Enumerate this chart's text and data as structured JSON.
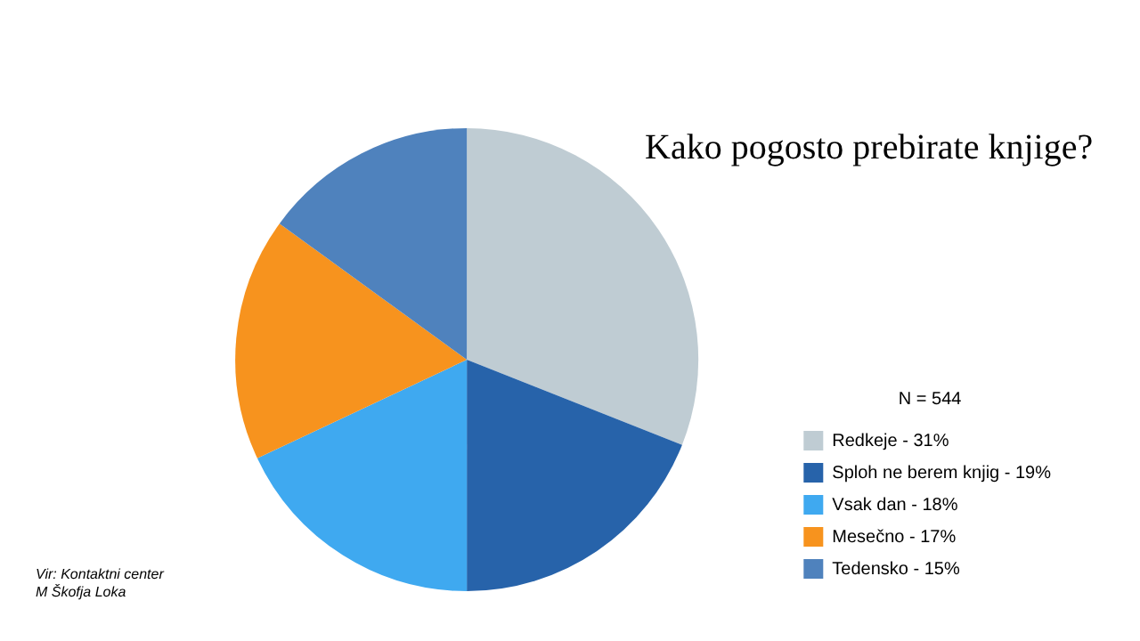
{
  "chart_data": {
    "type": "pie",
    "title": "Kako pogosto prebirate knjige?",
    "legend_title": "N = 544",
    "legend": "right",
    "categories": [
      "Redkeje - 31%",
      "Sploh ne berem knjig - 19%",
      "Vsak dan - 18%",
      "Mesečno - 17%",
      "Tedensko - 15%"
    ],
    "values": [
      31,
      19,
      18,
      17,
      15
    ],
    "colors": [
      "#bfccd3",
      "#2763aa",
      "#3fa9f0",
      "#f7931e",
      "#4f82bd"
    ],
    "annotations": [
      "Vir: Kontaktni center\nM Škofja Loka"
    ]
  }
}
